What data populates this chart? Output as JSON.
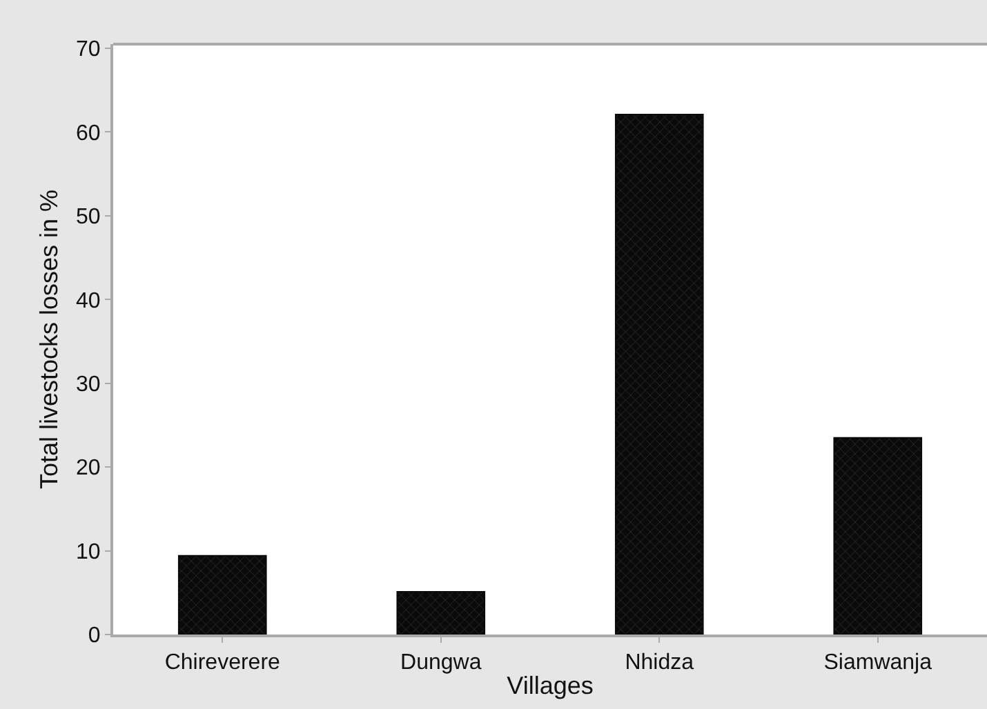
{
  "chart_data": {
    "type": "bar",
    "xlabel": "Villages",
    "ylabel": "Total livestocks losses in %",
    "categories": [
      "Chireverere",
      "Dungwa",
      "Nhidza",
      "Siamwanja"
    ],
    "values": [
      9.4,
      5.1,
      62.1,
      23.5
    ],
    "color": "#0a0a0a",
    "ylim": [
      0,
      70.5
    ],
    "yticks": [
      0,
      10,
      20,
      30,
      40,
      50,
      60,
      70
    ]
  }
}
